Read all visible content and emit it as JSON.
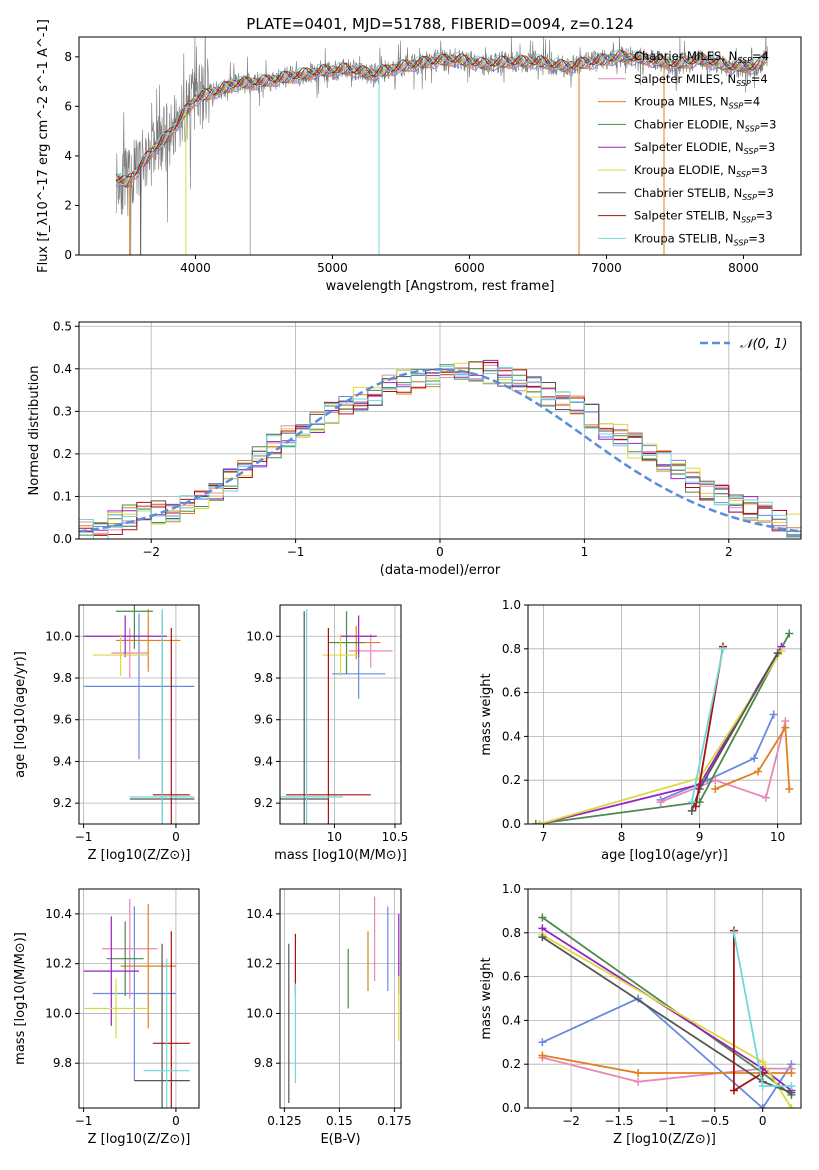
{
  "figure": {
    "title": "PLATE=0401, MJD=51788, FIBERID=0094, z=0.124"
  },
  "colors": {
    "chabrier_miles": "#6a8ae0",
    "salpeter_miles": "#e888b8",
    "kroupa_miles": "#e08020",
    "chabrier_elodie": "#4a8a4a",
    "salpeter_elodie": "#9a22c0",
    "kroupa_elodie": "#dada40",
    "chabrier_stelib": "#555555",
    "salpeter_stelib": "#aa1010",
    "kroupa_stelib": "#70d8d8",
    "gauss": "#5b8dd9",
    "grid": "#b0b0b0"
  },
  "chart_data": [
    {
      "id": "spectrum",
      "type": "line",
      "xlabel": "wavelength [Angstrom, rest frame]",
      "ylabel": "Flux [f_λ10^-17 erg cm^-2 s^-1 A^-1]",
      "xlim": [
        3150,
        8420
      ],
      "ylim": [
        0,
        8.8
      ],
      "xticks": [
        4000,
        5000,
        6000,
        7000,
        8000
      ],
      "yticks": [
        0,
        2,
        4,
        6,
        8
      ],
      "grid": false,
      "legend_position": "top-right",
      "continuum": {
        "x": [
          3420,
          3500,
          3600,
          3700,
          3800,
          3900,
          4000,
          4100,
          4300,
          4500,
          4700,
          4900,
          5100,
          5300,
          5500,
          5700,
          5900,
          6100,
          6300,
          6500,
          6700,
          6900,
          7100,
          7300,
          7500,
          7700,
          7900,
          8100,
          8180
        ],
        "y": [
          3.1,
          2.9,
          3.6,
          4.3,
          4.8,
          5.6,
          6.3,
          6.5,
          6.9,
          7.0,
          7.2,
          7.4,
          7.5,
          7.3,
          7.6,
          7.8,
          7.9,
          7.7,
          7.8,
          7.8,
          7.6,
          7.8,
          8.0,
          7.9,
          7.7,
          7.9,
          7.6,
          7.6,
          8.1
        ]
      },
      "series": [
        {
          "name": "Chabrier MILES, N_SSP=4",
          "key": "chabrier_miles"
        },
        {
          "name": "Salpeter MILES, N_SSP=4",
          "key": "salpeter_miles"
        },
        {
          "name": "Kroupa MILES, N_SSP=4",
          "key": "kroupa_miles"
        },
        {
          "name": "Chabrier ELODIE, N_SSP=3",
          "key": "chabrier_elodie"
        },
        {
          "name": "Salpeter ELODIE, N_SSP=3",
          "key": "salpeter_elodie"
        },
        {
          "name": "Kroupa ELODIE, N_SSP=3",
          "key": "kroupa_elodie"
        },
        {
          "name": "Chabrier STELIB, N_SSP=3",
          "key": "chabrier_stelib"
        },
        {
          "name": "Salpeter STELIB, N_SSP=3",
          "key": "salpeter_stelib"
        },
        {
          "name": "Kroupa STELIB, N_SSP=3",
          "key": "kroupa_stelib"
        }
      ]
    },
    {
      "id": "residuals",
      "type": "area",
      "xlabel": "(data-model)/error",
      "ylabel": "Normed distribution",
      "xlim": [
        -2.5,
        2.5
      ],
      "ylim": [
        0,
        0.51
      ],
      "xticks": [
        -2,
        -1,
        0,
        1,
        2
      ],
      "yticks": [
        0.0,
        0.1,
        0.2,
        0.3,
        0.4,
        0.5
      ],
      "grid": true,
      "legend_position": "top-right",
      "legend": "𝒩(0, 1)",
      "bin_edges_start": -2.5,
      "bin_width": 0.1,
      "histogram_center": [
        0.02,
        0.02,
        0.04,
        0.05,
        0.06,
        0.06,
        0.07,
        0.08,
        0.1,
        0.12,
        0.14,
        0.17,
        0.19,
        0.22,
        0.24,
        0.26,
        0.28,
        0.3,
        0.31,
        0.33,
        0.34,
        0.36,
        0.37,
        0.38,
        0.38,
        0.39,
        0.39,
        0.39,
        0.39,
        0.38,
        0.37,
        0.36,
        0.34,
        0.32,
        0.31,
        0.29,
        0.26,
        0.24,
        0.22,
        0.2,
        0.18,
        0.16,
        0.14,
        0.12,
        0.1,
        0.09,
        0.07,
        0.06,
        0.04,
        0.03
      ]
    },
    {
      "id": "z-age",
      "type": "scatter",
      "xlabel": "Z [log10(Z/Z⊙)]",
      "ylabel": "age  [log10(age/yr)]",
      "xlim": [
        -1.05,
        0.25
      ],
      "ylim": [
        9.1,
        10.15
      ],
      "xticks": [
        -1,
        0
      ],
      "yticks": [
        9.2,
        9.4,
        9.6,
        9.8,
        10.0
      ],
      "grid": true,
      "points": [
        {
          "key": "chabrier_miles",
          "x": -0.4,
          "y": 9.76,
          "xerr": 0.6,
          "yerr": 0.35
        },
        {
          "key": "salpeter_miles",
          "x": -0.5,
          "y": 9.92,
          "xerr": 0.2,
          "yerr": 0.12
        },
        {
          "key": "kroupa_miles",
          "x": -0.3,
          "y": 9.98,
          "xerr": 0.35,
          "yerr": 0.15
        },
        {
          "key": "chabrier_elodie",
          "x": -0.45,
          "y": 10.12,
          "xerr": 0.2,
          "yerr": 0.18
        },
        {
          "key": "salpeter_elodie",
          "x": -0.55,
          "y": 10.0,
          "xerr": 0.45,
          "yerr": 0.1
        },
        {
          "key": "kroupa_elodie",
          "x": -0.6,
          "y": 9.91,
          "xerr": 0.3,
          "yerr": 0.1
        },
        {
          "key": "chabrier_stelib",
          "x": -0.15,
          "y": 9.22,
          "xerr": 0.35,
          "yerr": 0.9
        },
        {
          "key": "salpeter_stelib",
          "x": -0.05,
          "y": 9.24,
          "xerr": 0.2,
          "yerr": 0.8
        },
        {
          "key": "kroupa_stelib",
          "x": -0.15,
          "y": 9.23,
          "xerr": 0.35,
          "yerr": 0.9
        }
      ]
    },
    {
      "id": "mass-age",
      "type": "scatter",
      "xlabel": "mass [log10(M/M⊙)]",
      "ylabel": "",
      "xlim": [
        9.55,
        10.55
      ],
      "ylim": [
        9.1,
        10.15
      ],
      "xticks": [
        9.0,
        10.0,
        10.5
      ],
      "yticks": [
        9.2,
        9.4,
        9.6,
        9.8,
        10.0
      ],
      "grid": true,
      "points": [
        {
          "key": "chabrier_miles",
          "x": 10.2,
          "y": 9.82,
          "xerr": 0.22,
          "yerr": 0.12
        },
        {
          "key": "salpeter_miles",
          "x": 10.3,
          "y": 9.93,
          "xerr": 0.18,
          "yerr": 0.08
        },
        {
          "key": "kroupa_miles",
          "x": 10.18,
          "y": 9.97,
          "xerr": 0.2,
          "yerr": 0.08
        },
        {
          "key": "chabrier_elodie",
          "x": 10.1,
          "y": 9.97,
          "xerr": 0.15,
          "yerr": 0.15
        },
        {
          "key": "salpeter_elodie",
          "x": 10.2,
          "y": 10.0,
          "xerr": 0.15,
          "yerr": 0.1
        },
        {
          "key": "kroupa_elodie",
          "x": 10.05,
          "y": 9.91,
          "xerr": 0.15,
          "yerr": 0.1
        },
        {
          "key": "chabrier_stelib",
          "x": 9.75,
          "y": 9.22,
          "xerr": 0.2,
          "yerr": 0.9
        },
        {
          "key": "salpeter_stelib",
          "x": 9.95,
          "y": 9.24,
          "xerr": 0.35,
          "yerr": 0.8
        },
        {
          "key": "kroupa_stelib",
          "x": 9.77,
          "y": 9.23,
          "xerr": 0.3,
          "yerr": 0.9
        }
      ]
    },
    {
      "id": "age-weight",
      "type": "line",
      "xlabel": "age  [log10(age/yr)]",
      "ylabel": "mass weight",
      "xlim": [
        6.8,
        10.3
      ],
      "ylim": [
        0.0,
        1.0
      ],
      "xticks": [
        7,
        8,
        9,
        10
      ],
      "yticks": [
        0.0,
        0.2,
        0.4,
        0.6,
        0.8,
        1.0
      ],
      "grid": true,
      "series": [
        {
          "key": "chabrier_miles",
          "x": [
            8.5,
            9.1,
            9.7,
            9.95
          ],
          "y": [
            0.11,
            0.2,
            0.3,
            0.5
          ]
        },
        {
          "key": "salpeter_miles",
          "x": [
            8.5,
            9.2,
            9.85,
            10.1
          ],
          "y": [
            0.1,
            0.2,
            0.12,
            0.47
          ]
        },
        {
          "key": "kroupa_miles",
          "x": [
            9.2,
            9.75,
            10.1,
            10.15
          ],
          "y": [
            0.16,
            0.24,
            0.44,
            0.16
          ]
        },
        {
          "key": "chabrier_elodie",
          "x": [
            6.9,
            9.0,
            10.15
          ],
          "y": [
            0.0,
            0.1,
            0.87
          ]
        },
        {
          "key": "salpeter_elodie",
          "x": [
            6.95,
            9.0,
            10.05
          ],
          "y": [
            0.0,
            0.18,
            0.81
          ]
        },
        {
          "key": "kroupa_elodie",
          "x": [
            6.95,
            9.0,
            10.05
          ],
          "y": [
            0.0,
            0.21,
            0.79
          ]
        },
        {
          "key": "chabrier_stelib",
          "x": [
            8.9,
            9.0,
            10.0
          ],
          "y": [
            0.06,
            0.16,
            0.78
          ]
        },
        {
          "key": "salpeter_stelib",
          "x": [
            8.95,
            9.3
          ],
          "y": [
            0.08,
            0.81
          ]
        },
        {
          "key": "kroupa_stelib",
          "x": [
            8.9,
            9.3
          ],
          "y": [
            0.1,
            0.8
          ]
        }
      ]
    },
    {
      "id": "z-mass",
      "type": "scatter",
      "xlabel": "Z [log10(Z/Z⊙)]",
      "ylabel": "mass [log10(M/M⊙)]",
      "xlim": [
        -1.05,
        0.25
      ],
      "ylim": [
        9.62,
        10.5
      ],
      "xticks": [
        -1,
        0
      ],
      "yticks": [
        9.8,
        10.0,
        10.2,
        10.4
      ],
      "grid": true,
      "points": [
        {
          "key": "chabrier_miles",
          "x": -0.45,
          "y": 10.08,
          "xerr": 0.45,
          "yerr": 0.35
        },
        {
          "key": "salpeter_miles",
          "x": -0.5,
          "y": 10.26,
          "xerr": 0.3,
          "yerr": 0.2
        },
        {
          "key": "kroupa_miles",
          "x": -0.3,
          "y": 10.19,
          "xerr": 0.3,
          "yerr": 0.25
        },
        {
          "key": "chabrier_elodie",
          "x": -0.55,
          "y": 10.22,
          "xerr": 0.2,
          "yerr": 0.15
        },
        {
          "key": "salpeter_elodie",
          "x": -0.7,
          "y": 10.17,
          "xerr": 0.3,
          "yerr": 0.22
        },
        {
          "key": "kroupa_elodie",
          "x": -0.65,
          "y": 10.02,
          "xerr": 0.35,
          "yerr": 0.12
        },
        {
          "key": "chabrier_stelib",
          "x": -0.15,
          "y": 9.73,
          "xerr": 0.3,
          "yerr": 0.55
        },
        {
          "key": "salpeter_stelib",
          "x": -0.05,
          "y": 9.88,
          "xerr": 0.2,
          "yerr": 0.45
        },
        {
          "key": "kroupa_stelib",
          "x": -0.1,
          "y": 9.77,
          "xerr": 0.25,
          "yerr": 0.45
        }
      ]
    },
    {
      "id": "ebv-mass",
      "type": "scatter",
      "xlabel": "E(B-V)",
      "ylabel": "",
      "xlim": [
        0.123,
        0.178
      ],
      "ylim": [
        9.62,
        10.5
      ],
      "xticks": [
        0.125,
        0.15,
        0.175
      ],
      "yticks": [
        9.8,
        10.0,
        10.2,
        10.4
      ],
      "grid": true,
      "points": [
        {
          "key": "chabrier_miles",
          "x": 0.172,
          "y": 10.26,
          "xerr": 0.0,
          "yerr": 0.17
        },
        {
          "key": "salpeter_miles",
          "x": 0.166,
          "y": 10.3,
          "xerr": 0.0,
          "yerr": 0.17
        },
        {
          "key": "kroupa_miles",
          "x": 0.163,
          "y": 10.21,
          "xerr": 0.0,
          "yerr": 0.12
        },
        {
          "key": "chabrier_elodie",
          "x": 0.154,
          "y": 10.14,
          "xerr": 0.0,
          "yerr": 0.12
        },
        {
          "key": "salpeter_elodie",
          "x": 0.177,
          "y": 10.24,
          "xerr": 0.0,
          "yerr": 0.16
        },
        {
          "key": "kroupa_elodie",
          "x": 0.177,
          "y": 10.02,
          "xerr": 0.0,
          "yerr": 0.13
        },
        {
          "key": "chabrier_stelib",
          "x": 0.127,
          "y": 9.96,
          "xerr": 0.0,
          "yerr": 0.32
        },
        {
          "key": "salpeter_stelib",
          "x": 0.13,
          "y": 10.2,
          "xerr": 0.0,
          "yerr": 0.12
        },
        {
          "key": "kroupa_stelib",
          "x": 0.13,
          "y": 9.92,
          "xerr": 0.0,
          "yerr": 0.2
        }
      ]
    },
    {
      "id": "z-weight",
      "type": "line",
      "xlabel": "Z [log10(Z/Z⊙)]",
      "ylabel": "mass weight",
      "xlim": [
        -2.45,
        0.4
      ],
      "ylim": [
        0.0,
        1.0
      ],
      "xticks": [
        -2.0,
        -1.5,
        -1.0,
        -0.5,
        0.0
      ],
      "yticks": [
        0.0,
        0.2,
        0.4,
        0.6,
        0.8,
        1.0
      ],
      "grid": true,
      "series": [
        {
          "key": "chabrier_miles",
          "x": [
            -2.3,
            -1.3,
            0.0,
            0.3
          ],
          "y": [
            0.3,
            0.5,
            0.0,
            0.2
          ]
        },
        {
          "key": "salpeter_miles",
          "x": [
            -2.3,
            -1.3,
            0.0,
            0.3
          ],
          "y": [
            0.23,
            0.12,
            0.18,
            0.18
          ]
        },
        {
          "key": "kroupa_miles",
          "x": [
            -2.3,
            -1.3,
            0.0,
            0.3
          ],
          "y": [
            0.24,
            0.16,
            0.16,
            0.16
          ]
        },
        {
          "key": "chabrier_elodie",
          "x": [
            -2.3,
            0.0,
            0.3
          ],
          "y": [
            0.87,
            0.16,
            0.06
          ]
        },
        {
          "key": "salpeter_elodie",
          "x": [
            -2.3,
            0.0,
            0.3
          ],
          "y": [
            0.82,
            0.18,
            0.08
          ]
        },
        {
          "key": "kroupa_elodie",
          "x": [
            -2.3,
            0.0,
            0.3
          ],
          "y": [
            0.79,
            0.21,
            0.0
          ]
        },
        {
          "key": "chabrier_stelib",
          "x": [
            -2.3,
            0.0,
            0.3
          ],
          "y": [
            0.78,
            0.12,
            0.07
          ]
        },
        {
          "key": "salpeter_stelib",
          "x": [
            -0.3,
            -0.3,
            0.0
          ],
          "y": [
            0.81,
            0.08,
            0.16
          ]
        },
        {
          "key": "kroupa_stelib",
          "x": [
            -0.3,
            0.0,
            0.3
          ],
          "y": [
            0.8,
            0.1,
            0.1
          ]
        }
      ]
    }
  ]
}
